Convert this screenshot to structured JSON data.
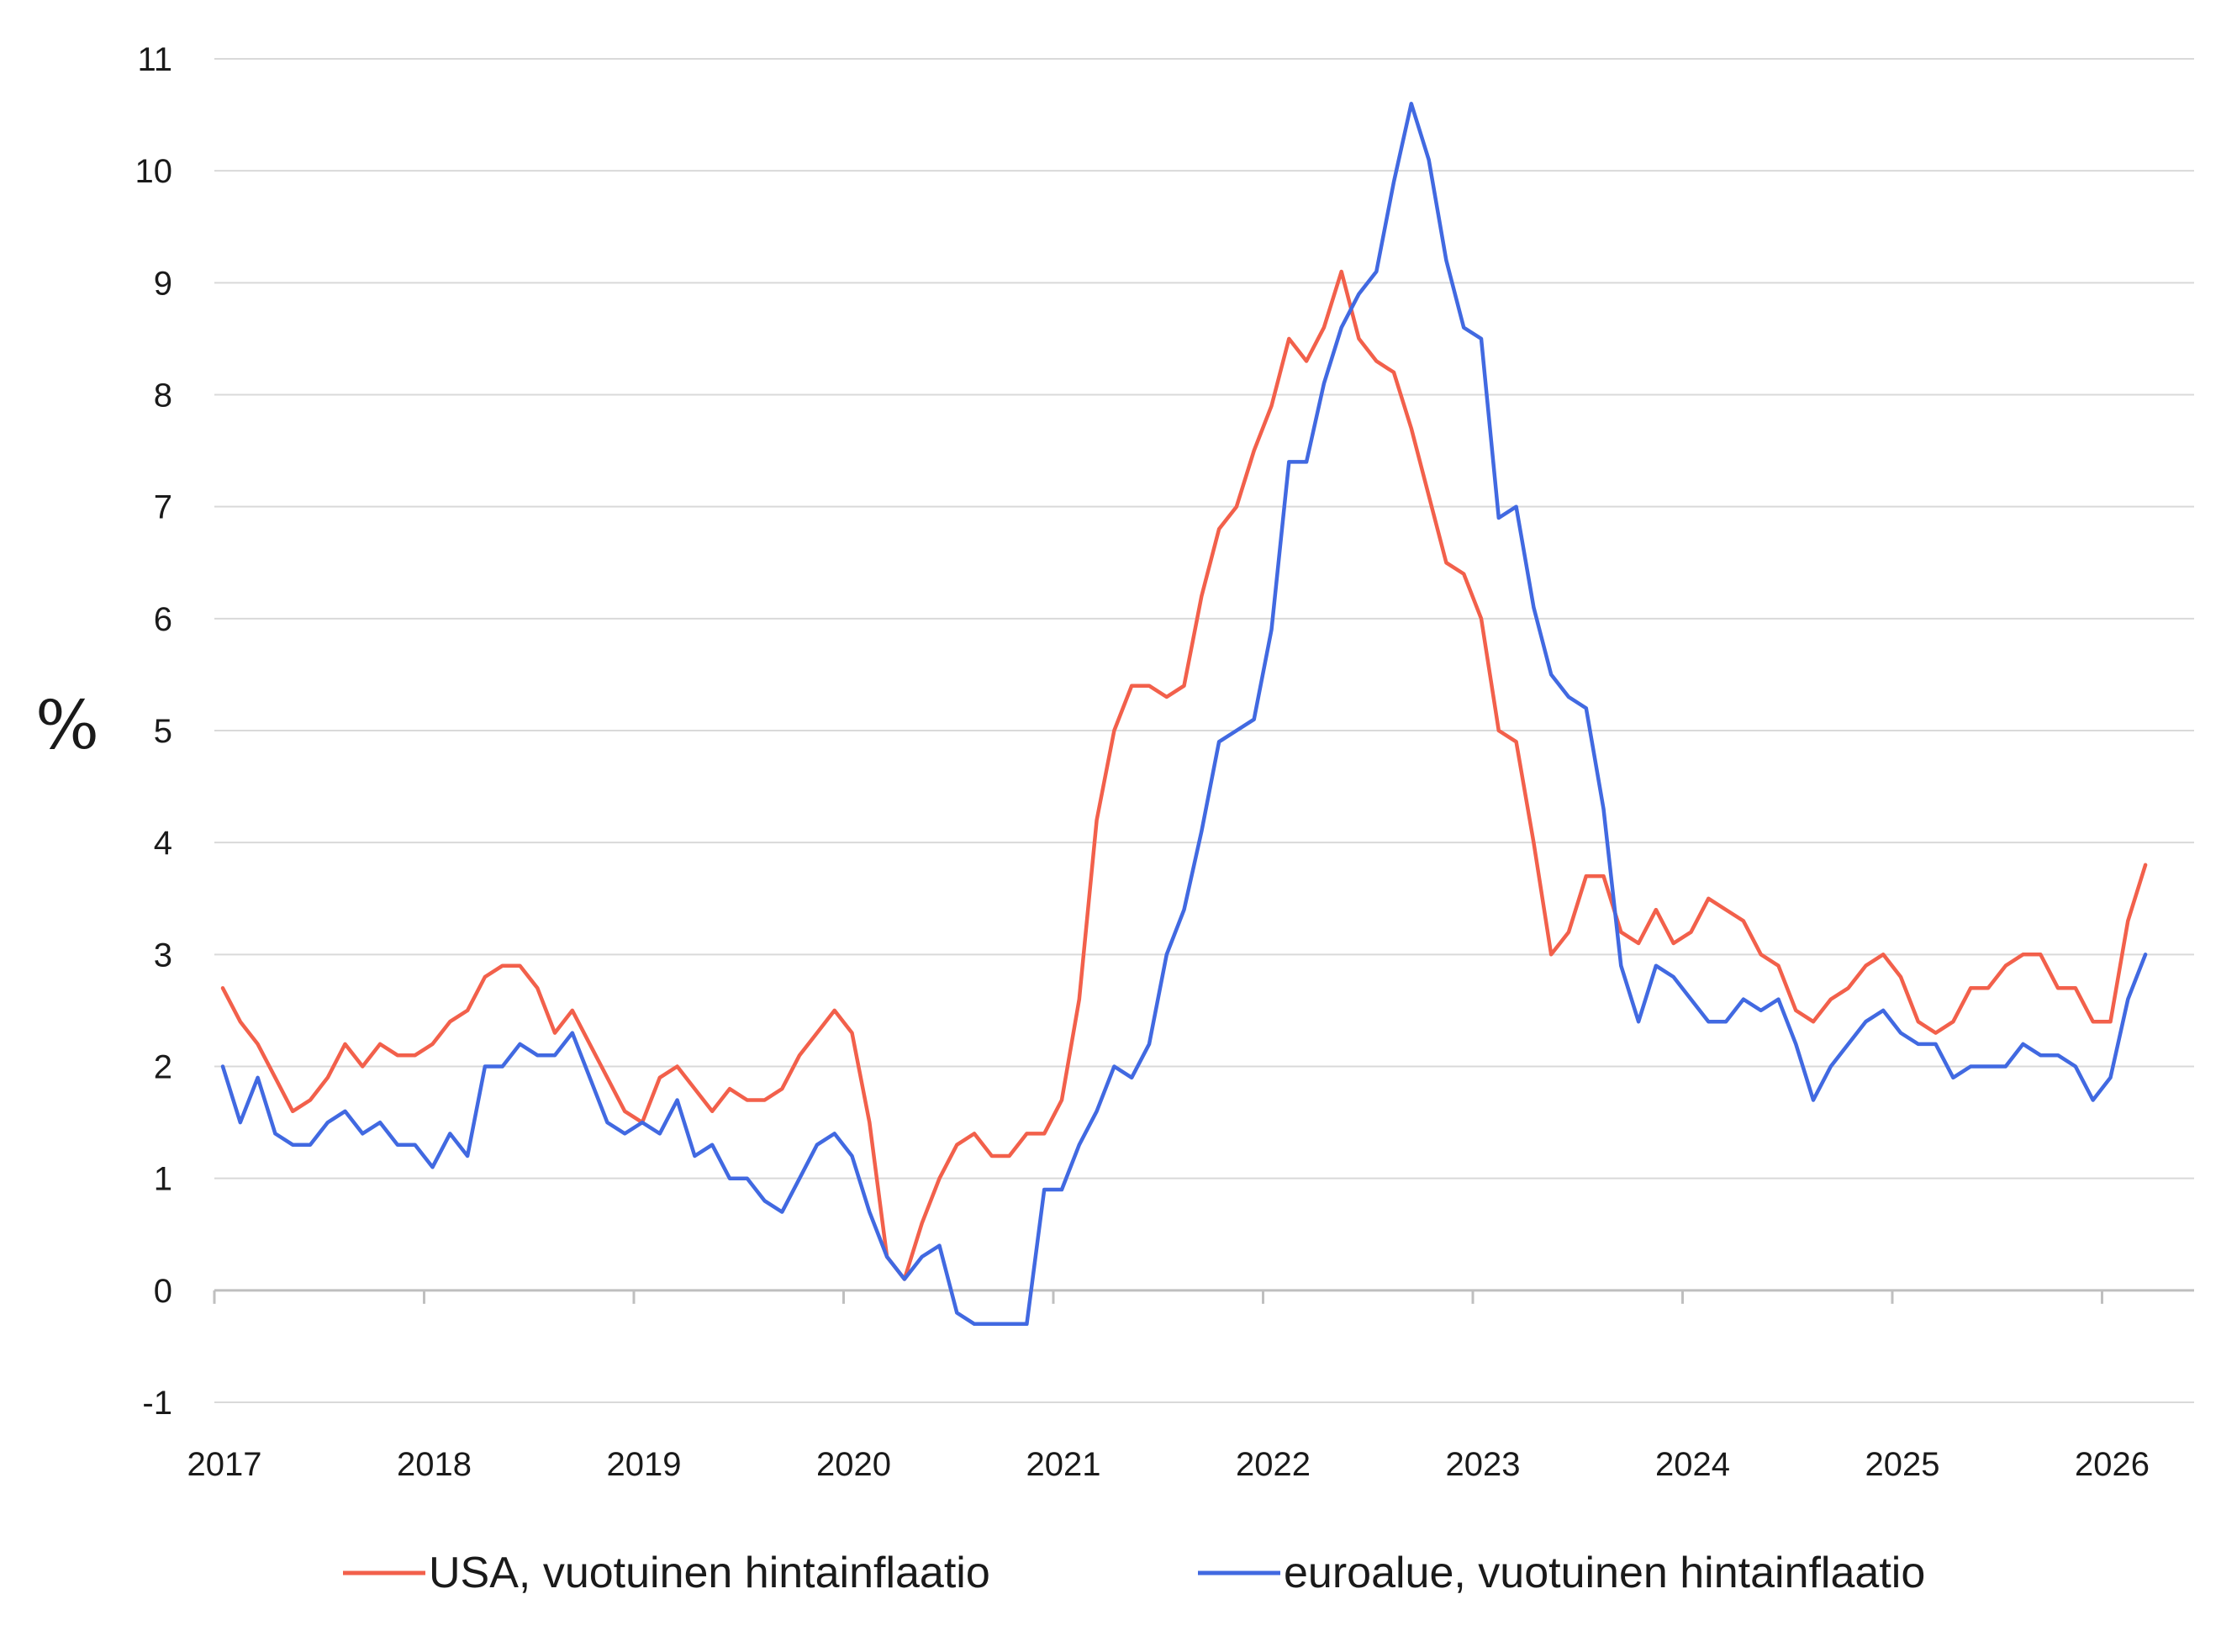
{
  "chart_data": {
    "type": "line",
    "title": "",
    "xlabel": "",
    "ylabel": "%",
    "ylim": [
      -1,
      11
    ],
    "yticks": [
      "-1",
      "0",
      "1",
      "2",
      "3",
      "4",
      "5",
      "6",
      "7",
      "8",
      "9",
      "10",
      "11"
    ],
    "xticks": [
      "2017",
      "2018",
      "2019",
      "2020",
      "2021",
      "2022",
      "2023",
      "2024",
      "2025",
      "2026"
    ],
    "grid": "horizontal",
    "legend_position": "bottom",
    "x_start": "2017-01",
    "x_step": "month",
    "series": [
      {
        "name": "USA, vuotuinen hintainflaatio",
        "color": "#f2604b",
        "values": [
          2.7,
          2.4,
          2.2,
          1.9,
          1.6,
          1.7,
          1.9,
          2.2,
          2.0,
          2.2,
          2.1,
          2.1,
          2.2,
          2.4,
          2.5,
          2.8,
          2.9,
          2.9,
          2.7,
          2.3,
          2.5,
          2.2,
          1.9,
          1.6,
          1.5,
          1.9,
          2.0,
          1.8,
          1.6,
          1.8,
          1.7,
          1.7,
          1.8,
          2.1,
          2.3,
          2.5,
          2.3,
          1.5,
          0.3,
          0.1,
          0.6,
          1.0,
          1.3,
          1.4,
          1.2,
          1.2,
          1.4,
          1.4,
          1.7,
          2.6,
          4.2,
          5.0,
          5.4,
          5.4,
          5.3,
          5.4,
          6.2,
          6.8,
          7.0,
          7.5,
          7.9,
          8.5,
          8.3,
          8.6,
          9.1,
          8.5,
          8.3,
          8.2,
          7.7,
          7.1,
          6.5,
          6.4,
          6.0,
          5.0,
          4.9,
          4.0,
          3.0,
          3.2,
          3.7,
          3.7,
          3.2,
          3.1,
          3.4,
          3.1,
          3.2,
          3.5,
          3.4,
          3.3,
          3.0,
          2.9,
          2.5,
          2.4,
          2.6,
          2.7,
          2.9,
          3.0,
          2.8,
          2.4,
          2.3,
          2.4,
          2.7,
          2.7,
          2.9,
          3.0,
          3.0,
          2.7,
          2.7,
          2.4,
          2.4,
          3.3,
          3.8
        ]
      },
      {
        "name": "euroalue, vuotuinen hintainflaatio",
        "color": "#4169e1",
        "values": [
          2.0,
          1.5,
          1.9,
          1.4,
          1.3,
          1.3,
          1.5,
          1.6,
          1.4,
          1.5,
          1.3,
          1.3,
          1.1,
          1.4,
          1.2,
          2.0,
          2.0,
          2.2,
          2.1,
          2.1,
          2.3,
          1.9,
          1.5,
          1.4,
          1.5,
          1.4,
          1.7,
          1.2,
          1.3,
          1.0,
          1.0,
          0.8,
          0.7,
          1.0,
          1.3,
          1.4,
          1.2,
          0.7,
          0.3,
          0.1,
          0.3,
          0.4,
          -0.2,
          -0.3,
          -0.3,
          -0.3,
          -0.3,
          0.9,
          0.9,
          1.3,
          1.6,
          2.0,
          1.9,
          2.2,
          3.0,
          3.4,
          4.1,
          4.9,
          5.0,
          5.1,
          5.9,
          7.4,
          7.4,
          8.1,
          8.6,
          8.9,
          9.1,
          9.9,
          10.6,
          10.1,
          9.2,
          8.6,
          8.5,
          6.9,
          7.0,
          6.1,
          5.5,
          5.3,
          5.2,
          4.3,
          2.9,
          2.4,
          2.9,
          2.8,
          2.6,
          2.4,
          2.4,
          2.6,
          2.5,
          2.6,
          2.2,
          1.7,
          2.0,
          2.2,
          2.4,
          2.5,
          2.3,
          2.2,
          2.2,
          1.9,
          2.0,
          2.0,
          2.0,
          2.2,
          2.1,
          2.1,
          2.0,
          1.7,
          1.9,
          2.6,
          3.0
        ]
      }
    ]
  }
}
